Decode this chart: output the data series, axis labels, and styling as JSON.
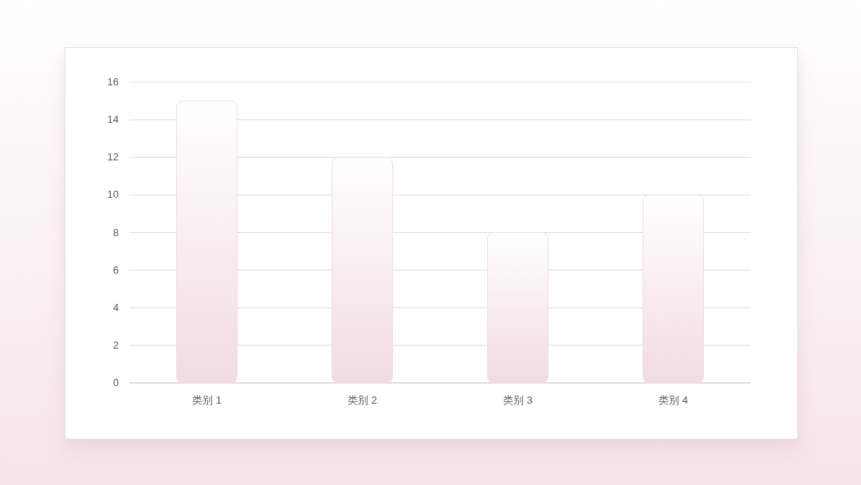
{
  "chart_data": {
    "type": "bar",
    "categories": [
      "类别 1",
      "类别 2",
      "类别 3",
      "类别 4"
    ],
    "values": [
      15,
      12,
      8,
      10
    ],
    "color": "#f2dbe3",
    "ylim": [
      0,
      16
    ],
    "yticks": [
      0,
      2,
      4,
      6,
      8,
      10,
      12,
      14,
      16
    ],
    "grid": "y"
  }
}
